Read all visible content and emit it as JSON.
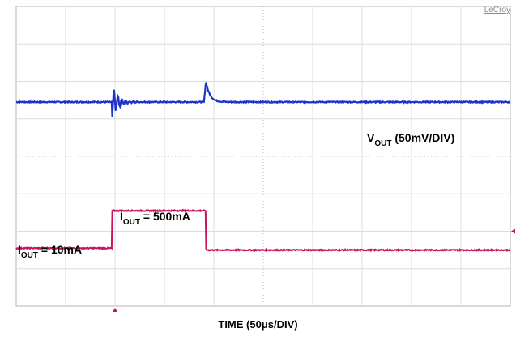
{
  "chart_data": {
    "type": "line",
    "brand": "LeCroy",
    "xlabel": "TIME (50μs/DIV)",
    "divisions": {
      "x": 10,
      "y": 8
    },
    "grid": true,
    "series": [
      {
        "name": "VOUT (50mV/DIV)",
        "name_main": "V",
        "name_sub": "OUT",
        "name_rest": " (50mV/DIV)",
        "color": "#1d33c9",
        "baseline_div": 5.45,
        "events": [
          {
            "t_div": 1.94,
            "kind": "ringing_down",
            "peak_div": -0.45
          },
          {
            "t_div": 3.84,
            "kind": "overshoot_up",
            "peak_div": 0.55
          }
        ]
      },
      {
        "name": "IOUT",
        "color": "#c8135f",
        "segments": [
          {
            "label_main": "I",
            "label_sub": "OUT",
            "label_rest": " = 10mA",
            "t_start_div": 0,
            "t_end_div": 1.94,
            "level_div": 1.55
          },
          {
            "label_main": "I",
            "label_sub": "OUT",
            "label_rest": " = 500mA",
            "t_start_div": 1.94,
            "t_end_div": 3.84,
            "level_div": 2.55
          },
          {
            "label_main": "",
            "label_sub": "",
            "label_rest": "",
            "t_start_div": 3.84,
            "t_end_div": 10,
            "level_div": 1.5
          }
        ]
      }
    ]
  }
}
